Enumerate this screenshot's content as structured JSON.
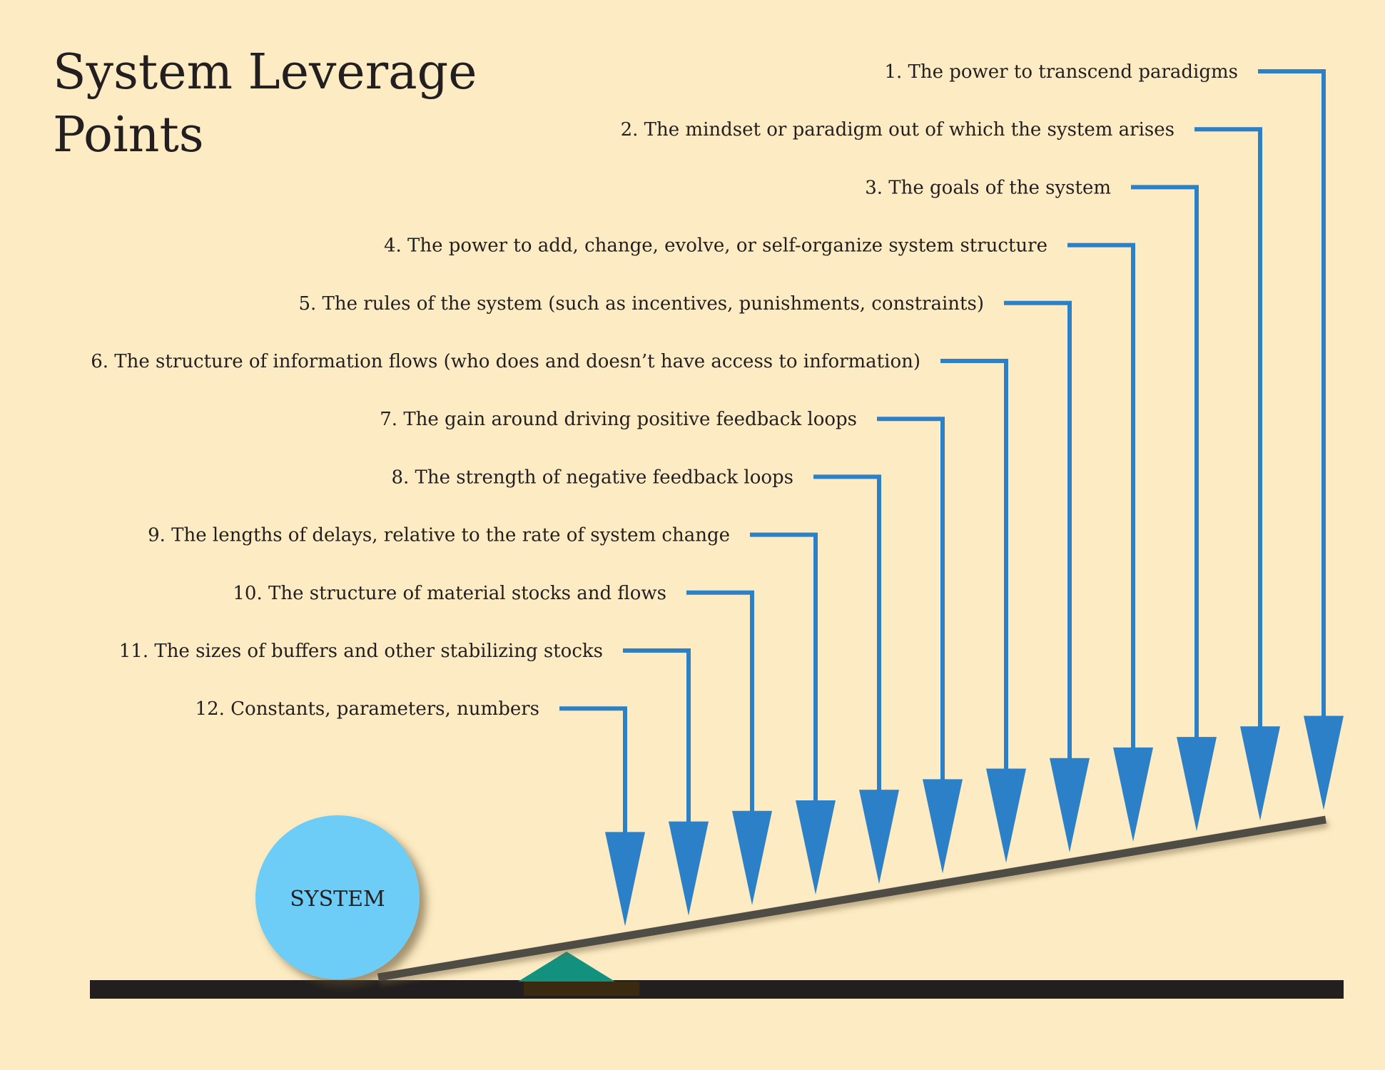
{
  "title": {
    "line1": "System Leverage",
    "line2": "Points"
  },
  "system_label": "SYSTEM",
  "leverage_points": [
    "1. The power to transcend paradigms",
    "2. The mindset or paradigm out of which the system arises",
    "3. The goals of the system",
    "4. The power to add, change, evolve, or self-organize system structure",
    "5. The rules of the system (such as incentives, punishments, constraints)",
    "6. The structure of information flows (who does and doesn’t have access to information)",
    "7. The gain around driving positive feedback loops",
    "8. The strength of negative feedback loops",
    "9. The lengths of delays, relative to the rate of system change",
    "10. The structure of material stocks and flows",
    "11. The sizes of buffers and other stabilizing stocks",
    "12. Constants, parameters, numbers"
  ],
  "colors": {
    "background": "#fdebc3",
    "arrow": "#2b80c8",
    "system_ball": "#6dcdf6",
    "lever": "#4f4c44",
    "ground": "#231f20",
    "fulcrum": "#13917f",
    "text": "#231f20"
  }
}
